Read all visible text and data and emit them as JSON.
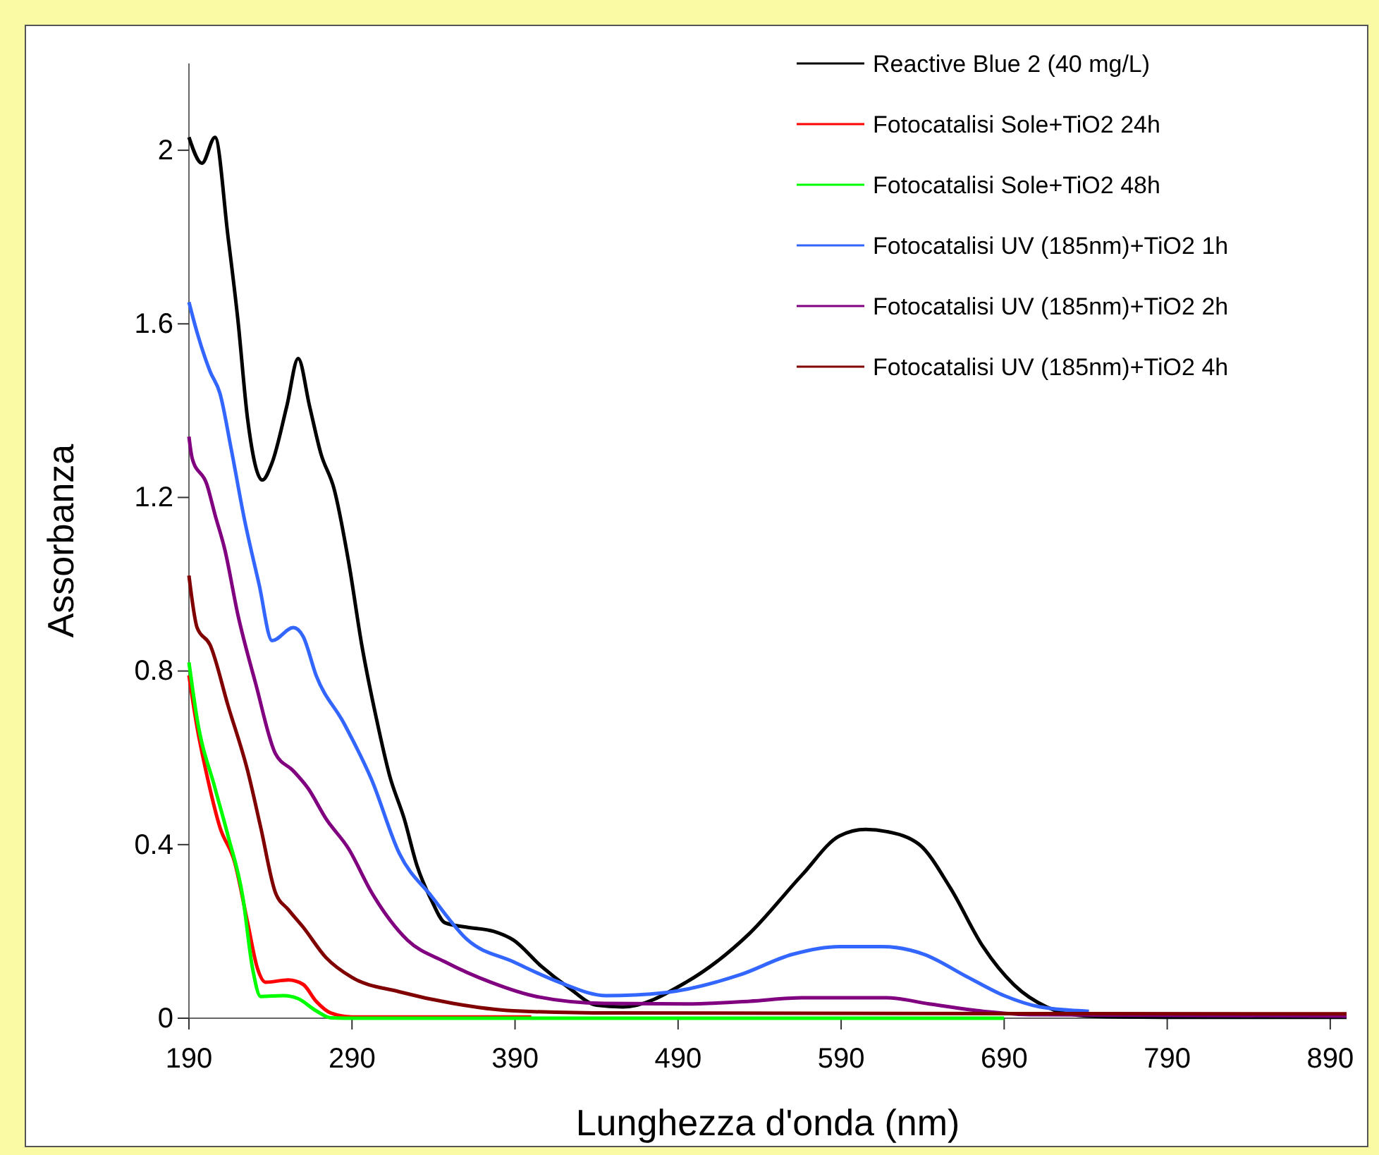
{
  "chart_data": {
    "type": "line",
    "xlabel": "Lunghezza d'onda (nm)",
    "ylabel": "Assorbanza",
    "xlim": [
      190,
      900
    ],
    "xticks": [
      190,
      290,
      390,
      490,
      590,
      690,
      790,
      890
    ],
    "ylim": [
      0,
      2.2
    ],
    "yticks": [
      0,
      0.4,
      0.8,
      1.2,
      1.6,
      2
    ],
    "grid": false,
    "legend": "top right",
    "marker": "none",
    "line_style": "solid",
    "series": [
      {
        "name": "Reactive Blue 2 (40 mg/L)",
        "color": "#000000",
        "x": [
          190,
          198,
          206,
          214,
          220,
          226,
          235,
          241,
          250,
          257,
          264,
          271,
          279,
          288,
          296,
          305,
          313,
          322,
          330,
          339,
          347,
          360,
          377,
          389,
          406,
          423,
          440,
          456,
          495,
          534,
          566,
          589,
          605,
          618,
          638,
          657,
          677,
          696,
          716,
          735,
          760,
          800,
          900
        ],
        "values": [
          2.03,
          1.97,
          2.03,
          1.8,
          1.61,
          1.38,
          1.24,
          1.28,
          1.41,
          1.52,
          1.41,
          1.3,
          1.22,
          1.05,
          0.86,
          0.69,
          0.56,
          0.46,
          0.35,
          0.27,
          0.22,
          0.21,
          0.2,
          0.18,
          0.12,
          0.07,
          0.03,
          0.026,
          0.083,
          0.196,
          0.33,
          0.42,
          0.435,
          0.43,
          0.4,
          0.3,
          0.165,
          0.077,
          0.026,
          0.007,
          0.003,
          0.002,
          0.002
        ]
      },
      {
        "name": "Fotocatalisi Sole+TiO2 24h",
        "color": "#ff0000",
        "x": [
          190,
          195,
          201,
          209,
          218,
          226,
          232,
          237,
          251,
          260,
          268,
          277,
          290,
          400
        ],
        "values": [
          0.79,
          0.67,
          0.56,
          0.44,
          0.36,
          0.22,
          0.115,
          0.083,
          0.088,
          0.078,
          0.039,
          0.012,
          0.003,
          0.003
        ]
      },
      {
        "name": "Fotocatalisi Sole+TiO2 48h",
        "color": "#00ff00",
        "x": [
          190,
          195,
          206,
          214,
          223,
          229,
          234,
          248,
          257,
          268,
          277,
          300,
          690
        ],
        "values": [
          0.82,
          0.69,
          0.53,
          0.42,
          0.28,
          0.115,
          0.05,
          0.052,
          0.045,
          0.017,
          0.001,
          0,
          0
        ]
      },
      {
        "name": "Fotocatalisi UV (185nm)+TiO2 1h",
        "color": "#3366ff",
        "x": [
          190,
          195,
          203,
          209,
          216,
          224,
          233,
          241,
          254,
          260,
          268,
          285,
          302,
          319,
          339,
          361,
          389,
          417,
          446,
          482,
          528,
          560,
          589,
          615,
          641,
          667,
          690,
          712,
          742
        ],
        "values": [
          1.65,
          1.58,
          1.49,
          1.44,
          1.31,
          1.15,
          1.0,
          0.87,
          0.9,
          0.88,
          0.79,
          0.68,
          0.55,
          0.38,
          0.28,
          0.18,
          0.13,
          0.083,
          0.052,
          0.059,
          0.1,
          0.147,
          0.165,
          0.165,
          0.147,
          0.096,
          0.052,
          0.026,
          0.016
        ]
      },
      {
        "name": "Fotocatalisi UV (185nm)+TiO2 2h",
        "color": "#800080",
        "x": [
          190,
          192,
          201,
          206,
          212,
          220,
          231,
          243,
          254,
          263,
          274,
          288,
          302,
          324,
          347,
          375,
          403,
          445,
          495,
          534,
          566,
          618,
          644,
          677,
          709,
          900
        ],
        "values": [
          1.34,
          1.29,
          1.23,
          1.16,
          1.08,
          0.93,
          0.77,
          0.61,
          0.57,
          0.53,
          0.46,
          0.39,
          0.29,
          0.18,
          0.13,
          0.083,
          0.05,
          0.034,
          0.033,
          0.039,
          0.047,
          0.047,
          0.033,
          0.016,
          0.008,
          0.005
        ]
      },
      {
        "name": "Fotocatalisi UV (185nm)+TiO2 4h",
        "color": "#800000",
        "x": [
          190,
          191,
          195,
          203,
          214,
          226,
          234,
          243,
          251,
          260,
          274,
          290,
          319,
          352,
          389,
          450,
          900
        ],
        "values": [
          1.02,
          0.99,
          0.9,
          0.86,
          0.72,
          0.57,
          0.44,
          0.29,
          0.25,
          0.21,
          0.14,
          0.094,
          0.061,
          0.034,
          0.017,
          0.012,
          0.01
        ]
      }
    ]
  }
}
